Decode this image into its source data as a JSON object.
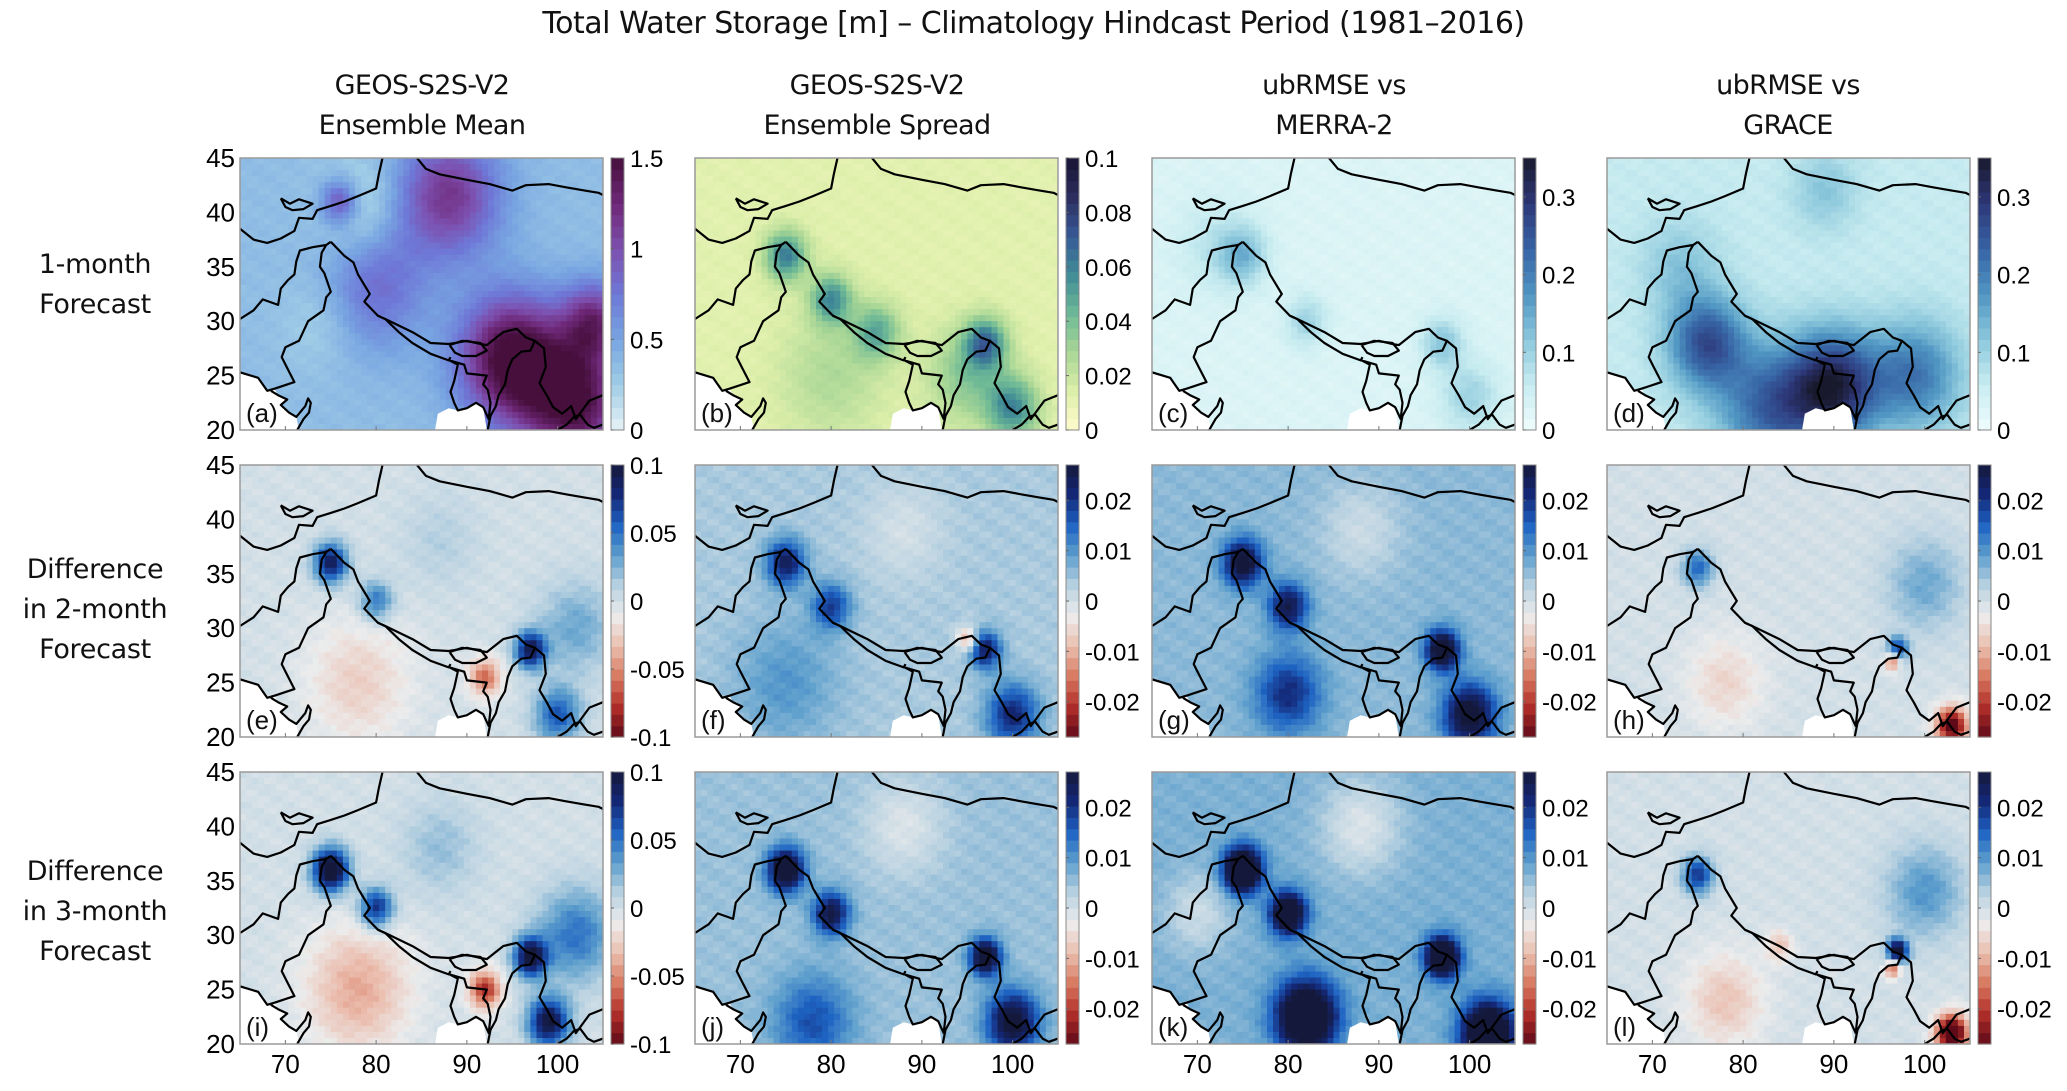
{
  "chart_data": {
    "type": "heatmap",
    "title": "Total Water Storage [m] – Climatology Hindcast Period (1981–2016)",
    "column_titles": [
      [
        "GEOS-S2S-V2",
        "Ensemble Mean"
      ],
      [
        "GEOS-S2S-V2",
        "Ensemble Spread"
      ],
      [
        "ubRMSE vs",
        "MERRA-2"
      ],
      [
        "ubRMSE vs",
        "GRACE"
      ]
    ],
    "row_labels": [
      [
        "1-month",
        "Forecast"
      ],
      [
        "Difference",
        "in 2-month",
        "Forecast"
      ],
      [
        "Difference",
        "in 3-month",
        "Forecast"
      ]
    ],
    "xlabel": "",
    "ylabel": "",
    "xlim": [
      65,
      105
    ],
    "ylim": [
      20,
      45
    ],
    "x_ticks": [
      70,
      80,
      90,
      100
    ],
    "y_ticks": [
      20,
      25,
      30,
      35,
      40,
      45
    ],
    "grid": false,
    "panels": [
      {
        "label": "(a)",
        "row": 0,
        "col": 0,
        "colormap": "purple",
        "clim": [
          0,
          1.5
        ],
        "cbar_ticks": [
          "0",
          "0.5",
          "1",
          "1.5"
        ],
        "cbar_tick_values": [
          0,
          0.5,
          1,
          1.5
        ]
      },
      {
        "label": "(b)",
        "row": 0,
        "col": 1,
        "colormap": "ylgnbu",
        "clim": [
          0,
          0.1
        ],
        "cbar_ticks": [
          "0",
          "0.02",
          "0.04",
          "0.06",
          "0.08",
          "0.1"
        ],
        "cbar_tick_values": [
          0,
          0.02,
          0.04,
          0.06,
          0.08,
          0.1
        ]
      },
      {
        "label": "(c)",
        "row": 0,
        "col": 2,
        "colormap": "blues",
        "clim": [
          0,
          0.35
        ],
        "cbar_ticks": [
          "0",
          "0.1",
          "0.2",
          "0.3"
        ],
        "cbar_tick_values": [
          0,
          0.1,
          0.2,
          0.3
        ]
      },
      {
        "label": "(d)",
        "row": 0,
        "col": 3,
        "colormap": "blues",
        "clim": [
          0,
          0.35
        ],
        "cbar_ticks": [
          "0",
          "0.1",
          "0.2",
          "0.3"
        ],
        "cbar_tick_values": [
          0,
          0.1,
          0.2,
          0.3
        ]
      },
      {
        "label": "(e)",
        "row": 1,
        "col": 0,
        "colormap": "diverging",
        "clim": [
          -0.1,
          0.1
        ],
        "cbar_ticks": [
          "-0.1",
          "-0.05",
          "0",
          "0.05",
          "0.1"
        ],
        "cbar_tick_values": [
          -0.1,
          -0.05,
          0,
          0.05,
          0.1
        ]
      },
      {
        "label": "(f)",
        "row": 1,
        "col": 1,
        "colormap": "diverging",
        "clim": [
          -0.027,
          0.027
        ],
        "cbar_ticks": [
          "-0.02",
          "-0.01",
          "0",
          "0.01",
          "0.02"
        ],
        "cbar_tick_values": [
          -0.02,
          -0.01,
          0,
          0.01,
          0.02
        ]
      },
      {
        "label": "(g)",
        "row": 1,
        "col": 2,
        "colormap": "diverging",
        "clim": [
          -0.027,
          0.027
        ],
        "cbar_ticks": [
          "-0.02",
          "-0.01",
          "0",
          "0.01",
          "0.02"
        ],
        "cbar_tick_values": [
          -0.02,
          -0.01,
          0,
          0.01,
          0.02
        ]
      },
      {
        "label": "(h)",
        "row": 1,
        "col": 3,
        "colormap": "diverging",
        "clim": [
          -0.027,
          0.027
        ],
        "cbar_ticks": [
          "-0.02",
          "-0.01",
          "0",
          "0.01",
          "0.02"
        ],
        "cbar_tick_values": [
          -0.02,
          -0.01,
          0,
          0.01,
          0.02
        ]
      },
      {
        "label": "(i)",
        "row": 2,
        "col": 0,
        "colormap": "diverging",
        "clim": [
          -0.1,
          0.1
        ],
        "cbar_ticks": [
          "-0.1",
          "-0.05",
          "0",
          "0.05",
          "0.1"
        ],
        "cbar_tick_values": [
          -0.1,
          -0.05,
          0,
          0.05,
          0.1
        ]
      },
      {
        "label": "(j)",
        "row": 2,
        "col": 1,
        "colormap": "diverging",
        "clim": [
          -0.027,
          0.027
        ],
        "cbar_ticks": [
          "-0.02",
          "-0.01",
          "0",
          "0.01",
          "0.02"
        ],
        "cbar_tick_values": [
          -0.02,
          -0.01,
          0,
          0.01,
          0.02
        ]
      },
      {
        "label": "(k)",
        "row": 2,
        "col": 2,
        "colormap": "diverging",
        "clim": [
          -0.027,
          0.027
        ],
        "cbar_ticks": [
          "-0.02",
          "-0.01",
          "0",
          "0.01",
          "0.02"
        ],
        "cbar_tick_values": [
          -0.02,
          -0.01,
          0,
          0.01,
          0.02
        ]
      },
      {
        "label": "(l)",
        "row": 2,
        "col": 3,
        "colormap": "diverging",
        "clim": [
          -0.027,
          0.027
        ],
        "cbar_ticks": [
          "-0.02",
          "-0.01",
          "0",
          "0.01",
          "0.02"
        ],
        "cbar_tick_values": [
          -0.02,
          -0.01,
          0,
          0.01,
          0.02
        ]
      }
    ],
    "fields": {
      "(a)": {
        "base": 0.35,
        "features": [
          [
            95,
            26.5,
            1.25,
            4
          ],
          [
            102,
            22.5,
            1.1,
            4
          ],
          [
            104,
            30,
            0.8,
            2.5
          ],
          [
            88,
            41.5,
            0.8,
            4
          ],
          [
            76,
            41,
            0.7,
            1.5
          ],
          [
            80,
            33,
            0.45,
            4
          ],
          [
            78,
            40.5,
            -0.3,
            3
          ],
          [
            74,
            30,
            -0.15,
            3
          ]
        ]
      },
      "(b)": {
        "base": 0.012,
        "features": [
          [
            75,
            36,
            0.05,
            1.6
          ],
          [
            80,
            32,
            0.045,
            1.6
          ],
          [
            85,
            29,
            0.035,
            1.8
          ],
          [
            97,
            28,
            0.05,
            1.6
          ],
          [
            100,
            22,
            0.045,
            2
          ],
          [
            95,
            25,
            0.025,
            3
          ],
          [
            80,
            25,
            0.015,
            4
          ]
        ]
      },
      "(c)": {
        "base": 0.03,
        "features": [
          [
            75,
            36,
            0.1,
            1.8
          ],
          [
            82,
            30,
            0.07,
            1.6
          ],
          [
            97,
            28,
            0.09,
            1.6
          ],
          [
            100,
            23,
            0.07,
            2.2
          ],
          [
            72,
            37,
            0.04,
            3
          ]
        ]
      },
      "(d)": {
        "base": 0.06,
        "features": [
          [
            90,
            24,
            0.26,
            3.5
          ],
          [
            76,
            28,
            0.2,
            3
          ],
          [
            83,
            22,
            0.17,
            4
          ],
          [
            99,
            25,
            0.15,
            3.5
          ],
          [
            89,
            42,
            0.06,
            2.5
          ],
          [
            73,
            35,
            0.06,
            3
          ]
        ]
      },
      "(e)": {
        "base": 0.0,
        "features": [
          [
            75,
            36,
            0.09,
            1.3
          ],
          [
            80,
            32.5,
            0.05,
            1.3
          ],
          [
            97,
            28,
            0.09,
            1.2
          ],
          [
            100,
            22,
            0.06,
            1.8
          ],
          [
            102,
            30,
            0.03,
            3
          ],
          [
            78,
            25,
            -0.025,
            4
          ],
          [
            92,
            25.5,
            -0.06,
            1.2
          ],
          [
            87,
            38,
            0.012,
            3
          ]
        ]
      },
      "(f)": {
        "base": 0.004,
        "features": [
          [
            75,
            36,
            0.02,
            1.5
          ],
          [
            80,
            32,
            0.015,
            1.5
          ],
          [
            97,
            28,
            0.02,
            1.2
          ],
          [
            100,
            22,
            0.018,
            2
          ],
          [
            75,
            25,
            0.006,
            4
          ],
          [
            95,
            29,
            -0.015,
            0.8
          ],
          [
            88,
            39,
            -0.004,
            3
          ]
        ]
      },
      "(g)": {
        "base": 0.006,
        "features": [
          [
            75,
            36,
            0.025,
            1.5
          ],
          [
            80,
            32,
            0.02,
            1.5
          ],
          [
            97,
            28,
            0.028,
            1.3
          ],
          [
            100,
            22,
            0.025,
            2
          ],
          [
            80,
            24,
            0.015,
            2.5
          ],
          [
            88,
            39,
            -0.005,
            3
          ]
        ]
      },
      "(h)": {
        "base": 0.0,
        "features": [
          [
            75,
            35.5,
            0.015,
            1.2
          ],
          [
            78,
            25,
            -0.006,
            3
          ],
          [
            97,
            28,
            0.02,
            0.8
          ],
          [
            96.5,
            27,
            -0.02,
            0.6
          ],
          [
            103,
            21,
            -0.03,
            1.2
          ],
          [
            100,
            34,
            0.008,
            3
          ]
        ]
      },
      "(i)": {
        "base": 0.0,
        "features": [
          [
            75,
            36,
            0.12,
            1.4
          ],
          [
            80,
            32.5,
            0.08,
            1.3
          ],
          [
            97,
            28,
            0.1,
            1.3
          ],
          [
            99,
            22,
            0.1,
            1.6
          ],
          [
            102,
            30,
            0.05,
            3
          ],
          [
            78,
            25,
            -0.04,
            4
          ],
          [
            92,
            25,
            -0.08,
            1.2
          ],
          [
            87,
            38,
            0.02,
            3
          ]
        ]
      },
      "(j)": {
        "base": 0.005,
        "features": [
          [
            75,
            36,
            0.03,
            1.4
          ],
          [
            80,
            32,
            0.022,
            1.4
          ],
          [
            97,
            28,
            0.028,
            1.2
          ],
          [
            100,
            22,
            0.025,
            2
          ],
          [
            78,
            22,
            0.012,
            3
          ],
          [
            88,
            40,
            -0.006,
            3
          ]
        ]
      },
      "(k)": {
        "base": 0.007,
        "features": [
          [
            75,
            36,
            0.04,
            1.4
          ],
          [
            80,
            32,
            0.03,
            1.4
          ],
          [
            97,
            28,
            0.035,
            1.3
          ],
          [
            102,
            21,
            0.035,
            2
          ],
          [
            82,
            22.5,
            0.035,
            2.3
          ],
          [
            88,
            40,
            -0.008,
            3
          ],
          [
            70,
            32,
            -0.006,
            2.5
          ]
        ]
      },
      "(l)": {
        "base": 0.0,
        "features": [
          [
            75,
            35.5,
            0.02,
            1.2
          ],
          [
            78,
            24,
            -0.008,
            3
          ],
          [
            97,
            28.5,
            0.03,
            0.8
          ],
          [
            96.5,
            27,
            -0.02,
            0.6
          ],
          [
            103,
            21,
            -0.035,
            1.2
          ],
          [
            100,
            34,
            0.01,
            3
          ],
          [
            84,
            29,
            -0.008,
            1
          ]
        ]
      }
    }
  }
}
